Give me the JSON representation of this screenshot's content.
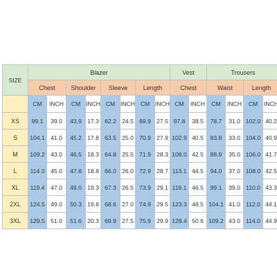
{
  "chart_data": {
    "type": "table",
    "size_label": "SIZE",
    "groups": [
      {
        "name": "Blazer",
        "measures": [
          "Chest",
          "Shoulder",
          "Sleeve",
          "Length"
        ]
      },
      {
        "name": "Vest",
        "measures": [
          "Chest"
        ]
      },
      {
        "name": "Trousers",
        "measures": [
          "Waist",
          "Length"
        ]
      }
    ],
    "units": [
      "CM",
      "INCH"
    ],
    "rows": [
      {
        "size": "XS",
        "values": [
          "99.1",
          "39.0",
          "43.9",
          "17.3",
          "62.2",
          "24.5",
          "69.9",
          "27.5",
          "97.8",
          "38.5",
          "78.7",
          "31.0",
          "102.0",
          "40.2"
        ]
      },
      {
        "size": "S",
        "values": [
          "104.1",
          "41.0",
          "45.2",
          "17.8",
          "63.5",
          "25.0",
          "70.9",
          "27.9",
          "102.9",
          "40.5",
          "83.8",
          "33.0",
          "104.0",
          "40.9"
        ]
      },
      {
        "size": "M",
        "values": [
          "109.2",
          "43.0",
          "46.5",
          "18.3",
          "64.8",
          "25.5",
          "71.9",
          "28.3",
          "108.0",
          "42.5",
          "88.9",
          "35.0",
          "106.0",
          "41.7"
        ]
      },
      {
        "size": "L",
        "values": [
          "114.3",
          "45.0",
          "47.8",
          "18.8",
          "66.0",
          "26.0",
          "72.9",
          "28.7",
          "113.1",
          "44.5",
          "94.0",
          "37.0",
          "108.0",
          "42.5"
        ]
      },
      {
        "size": "XL",
        "values": [
          "119.4",
          "47.0",
          "49.0",
          "19.3",
          "67.3",
          "26.5",
          "73.9",
          "29.1",
          "118.1",
          "46.5",
          "99.1",
          "39.0",
          "110.0",
          "43.3"
        ]
      },
      {
        "size": "2XL",
        "values": [
          "124.5",
          "49.0",
          "50.3",
          "19.8",
          "68.6",
          "27.0",
          "74.9",
          "29.5",
          "123.3",
          "48.5",
          "104.1",
          "41.0",
          "112.0",
          "44.1"
        ]
      },
      {
        "size": "3XL",
        "values": [
          "129.5",
          "51.0",
          "51.6",
          "20.3",
          "69.9",
          "27.5",
          "75.9",
          "29.9",
          "128.4",
          "50.6",
          "109.2",
          "43.0",
          "114.0",
          "44.9"
        ]
      }
    ],
    "colors": {
      "group_header": "#d8ead0",
      "measure_header": "#f6ccaa",
      "cm_column": "#a9cbe9",
      "inch_column": "#ffffff",
      "size_column": "#fef0be",
      "border": "#b9c3c9"
    }
  }
}
